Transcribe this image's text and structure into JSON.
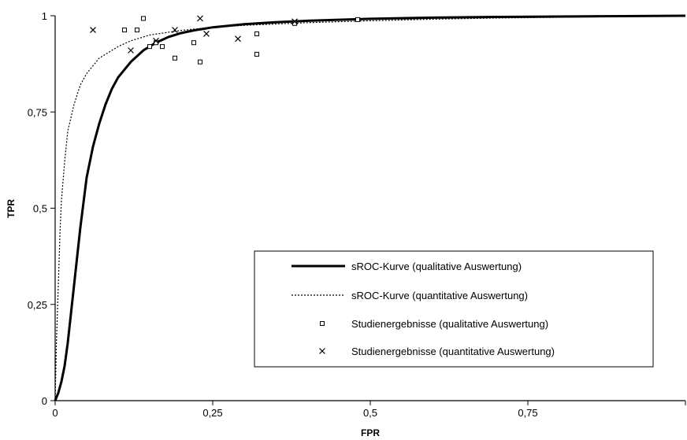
{
  "chart_data": {
    "type": "line",
    "xlabel": "FPR",
    "ylabel": "TPR",
    "xlim": [
      0,
      1
    ],
    "ylim": [
      0,
      1
    ],
    "x_ticks": [
      "0",
      "0,25",
      "0,5",
      "0,75"
    ],
    "x_tick_values": [
      0,
      0.25,
      0.5,
      0.75
    ],
    "y_ticks": [
      "0",
      "0,25",
      "0,5",
      "0,75",
      "1"
    ],
    "y_tick_values": [
      0,
      0.25,
      0.5,
      0.75,
      1
    ],
    "grid": false,
    "legend_position": "bottom-right",
    "series": [
      {
        "name": "sROC-Kurve (qualitative Auswertung)",
        "kind": "line",
        "style": "solid",
        "x": [
          0,
          0.005,
          0.01,
          0.015,
          0.02,
          0.03,
          0.04,
          0.05,
          0.06,
          0.07,
          0.08,
          0.09,
          0.1,
          0.12,
          0.14,
          0.16,
          0.18,
          0.2,
          0.22,
          0.25,
          0.3,
          0.35,
          0.4,
          0.5,
          0.6,
          0.7,
          0.8,
          0.9,
          1.0
        ],
        "y": [
          0,
          0.02,
          0.05,
          0.09,
          0.15,
          0.3,
          0.45,
          0.58,
          0.66,
          0.72,
          0.77,
          0.81,
          0.84,
          0.88,
          0.91,
          0.93,
          0.945,
          0.955,
          0.962,
          0.97,
          0.978,
          0.983,
          0.987,
          0.992,
          0.995,
          0.997,
          0.998,
          0.999,
          1.0
        ]
      },
      {
        "name": "sROC-Kurve (quantitative Auswertung)",
        "kind": "line",
        "style": "dotted",
        "x": [
          0,
          0.002,
          0.005,
          0.008,
          0.01,
          0.015,
          0.02,
          0.03,
          0.04,
          0.05,
          0.06,
          0.07,
          0.08,
          0.1,
          0.12,
          0.15,
          0.2,
          0.25,
          0.3,
          0.4,
          0.5,
          0.6,
          0.7,
          0.8,
          0.9,
          1.0
        ],
        "y": [
          0,
          0.15,
          0.3,
          0.45,
          0.52,
          0.62,
          0.7,
          0.77,
          0.82,
          0.85,
          0.87,
          0.89,
          0.9,
          0.92,
          0.935,
          0.95,
          0.962,
          0.97,
          0.975,
          0.982,
          0.987,
          0.991,
          0.994,
          0.996,
          0.998,
          1.0
        ]
      },
      {
        "name": "Studienergebnisse (qualitative Auswertung)",
        "kind": "scatter",
        "marker": "square",
        "x": [
          0.11,
          0.13,
          0.14,
          0.15,
          0.16,
          0.17,
          0.19,
          0.22,
          0.23,
          0.32,
          0.32,
          0.38,
          0.48
        ],
        "y": [
          0.963,
          0.963,
          0.993,
          0.92,
          0.93,
          0.92,
          0.89,
          0.93,
          0.88,
          0.953,
          0.9,
          0.98,
          0.99
        ]
      },
      {
        "name": "Studienergebnisse (quantitative Auswertung)",
        "kind": "scatter",
        "marker": "x",
        "x": [
          0.06,
          0.12,
          0.16,
          0.19,
          0.23,
          0.24,
          0.29,
          0.38
        ],
        "y": [
          0.963,
          0.91,
          0.935,
          0.963,
          0.993,
          0.953,
          0.94,
          0.985
        ]
      }
    ]
  }
}
